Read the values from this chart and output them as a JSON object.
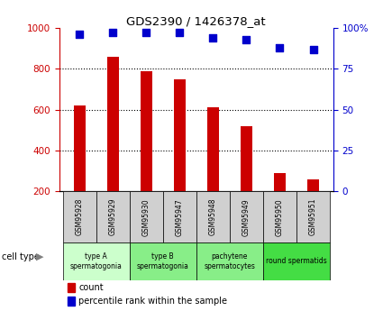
{
  "title": "GDS2390 / 1426378_at",
  "samples": [
    "GSM95928",
    "GSM95929",
    "GSM95930",
    "GSM95947",
    "GSM95948",
    "GSM95949",
    "GSM95950",
    "GSM95951"
  ],
  "counts": [
    620,
    860,
    790,
    750,
    610,
    520,
    290,
    260
  ],
  "percentile_ranks": [
    96,
    97,
    97,
    97,
    94,
    93,
    88,
    87
  ],
  "ylim_left": [
    200,
    1000
  ],
  "ylim_right": [
    0,
    100
  ],
  "yticks_left": [
    200,
    400,
    600,
    800,
    1000
  ],
  "yticks_right": [
    0,
    25,
    50,
    75,
    100
  ],
  "bar_color": "#cc0000",
  "dot_color": "#0000cc",
  "cell_types": [
    {
      "label": "type A\nspermatogonia",
      "color": "#ccffcc",
      "start": 0,
      "end": 2
    },
    {
      "label": "type B\nspermatogonia",
      "color": "#88ee88",
      "start": 2,
      "end": 4
    },
    {
      "label": "pachytene\nspermatocytes",
      "color": "#88ee88",
      "start": 4,
      "end": 6
    },
    {
      "label": "round spermatids",
      "color": "#44dd44",
      "start": 6,
      "end": 8
    }
  ],
  "bar_width": 0.35,
  "dot_size": 40,
  "background_color": "#ffffff",
  "left_tick_color": "#cc0000",
  "right_tick_color": "#0000cc",
  "legend_count_label": "count",
  "legend_pct_label": "percentile rank within the sample",
  "sample_box_color": "#d0d0d0",
  "cell_type_label": "cell type"
}
